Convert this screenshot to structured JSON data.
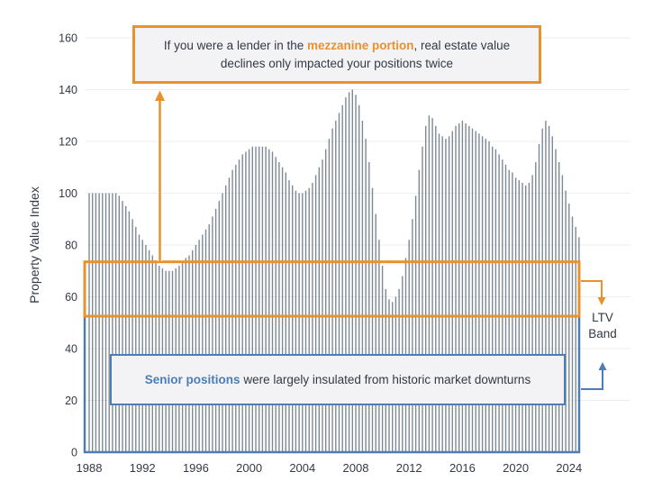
{
  "chart_data": {
    "type": "bar",
    "title": "",
    "xlabel": "",
    "ylabel": "Property Value Index",
    "start_period": "1988Q1",
    "frequency": "quarterly",
    "ylim": [
      0,
      160
    ],
    "y_ticks": [
      0,
      20,
      40,
      60,
      80,
      100,
      120,
      140,
      160
    ],
    "x_ticks": [
      1988,
      1992,
      1996,
      2000,
      2004,
      2008,
      2012,
      2016,
      2020,
      2024
    ],
    "grid": "horizontal",
    "legend": "none",
    "bar_color": "#6F7B89",
    "values": [
      100,
      100,
      100,
      100,
      100,
      100,
      100,
      100,
      100,
      99,
      97,
      95,
      93,
      90,
      87,
      84,
      82,
      80,
      78,
      76,
      74,
      72,
      71,
      70,
      70,
      70,
      71,
      72,
      73,
      75,
      76,
      78,
      80,
      82,
      84,
      86,
      88,
      91,
      94,
      97,
      100,
      103,
      106,
      109,
      111,
      113,
      115,
      116,
      117,
      118,
      118,
      118,
      118,
      118,
      117,
      116,
      114,
      112,
      110,
      108,
      105,
      103,
      101,
      100,
      100,
      101,
      102,
      104,
      107,
      110,
      113,
      117,
      121,
      125,
      128,
      131,
      134,
      137,
      139,
      140,
      138,
      134,
      128,
      121,
      112,
      102,
      92,
      82,
      72,
      63,
      59,
      58,
      60,
      63,
      68,
      75,
      82,
      90,
      99,
      109,
      118,
      126,
      130,
      129,
      126,
      123,
      122,
      121,
      122,
      124,
      126,
      127,
      128,
      127,
      126,
      125,
      124,
      123,
      122,
      121,
      120,
      118,
      117,
      115,
      113,
      111,
      109,
      108,
      106,
      105,
      104,
      103,
      104,
      107,
      112,
      119,
      125,
      128,
      126,
      122,
      117,
      112,
      107,
      101,
      96,
      91,
      87,
      83
    ]
  },
  "ltv_bands": {
    "mezzanine": {
      "from": 52.5,
      "to": 73.5,
      "color": "#E8912D"
    },
    "senior": {
      "from": 0,
      "to": 52.5,
      "color": "#4D7DB5"
    }
  },
  "annotations": {
    "mezzanine_note": {
      "line1_prefix": "If you were a lender in the ",
      "line1_highlight": "mezzanine portion",
      "line1_suffix": ", real estate value",
      "line2": "declines only impacted your positions twice"
    },
    "senior_note": {
      "highlight": "Senior positions",
      "suffix": " were largely insulated from historic market downturns"
    },
    "ltv_label": "LTV Band"
  },
  "colors": {
    "accent_orange": "#E8912D",
    "accent_blue": "#4D7DB5",
    "bar": "#6F7B89",
    "text": "#333945",
    "gridline": "#ECEDEF",
    "note_bg": "#F3F3F5",
    "background": "#FFFFFF"
  }
}
